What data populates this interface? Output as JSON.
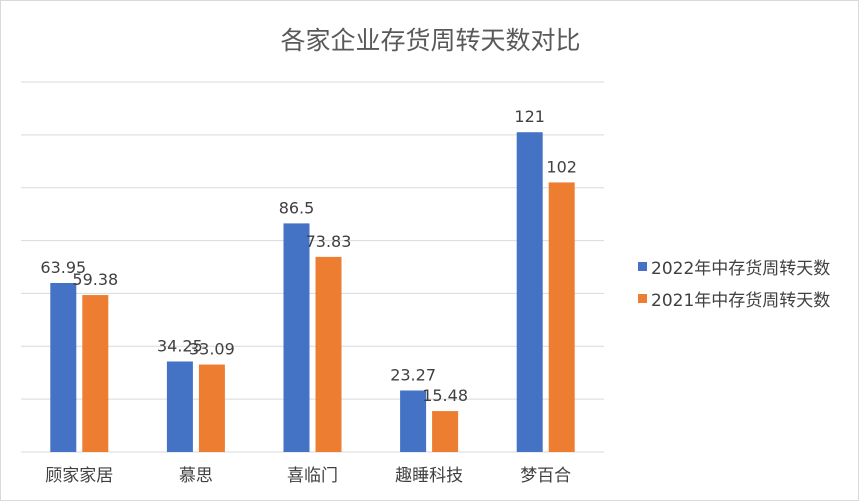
{
  "chart_data": {
    "type": "bar",
    "title": "各家企业存货周转天数对比",
    "categories": [
      "顾家家居",
      "慕思",
      "喜临门",
      "趣睡科技",
      "梦百合"
    ],
    "series": [
      {
        "name": "2022年中存货周转天数",
        "values": [
          63.95,
          34.25,
          86.5,
          23.27,
          121
        ],
        "labels": [
          "63.95",
          "34.25",
          "86.5",
          "23.27",
          "121"
        ],
        "color": "#4472C4"
      },
      {
        "name": "2021年中存货周转天数",
        "values": [
          59.38,
          33.09,
          73.83,
          15.48,
          102
        ],
        "labels": [
          "59.38",
          "33.09",
          "73.83",
          "15.48",
          "102"
        ],
        "color": "#ED7D31"
      }
    ],
    "ylim": [
      0,
      140
    ],
    "grid": true,
    "y_tick_labels_shown": false,
    "legend_position": "right"
  }
}
